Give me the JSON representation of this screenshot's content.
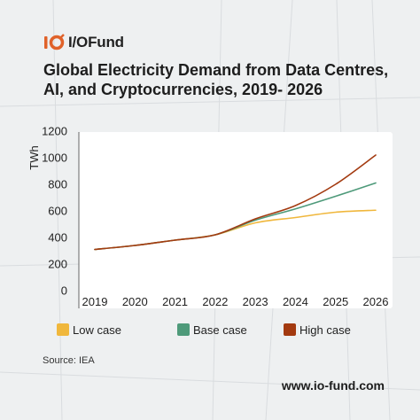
{
  "brand": {
    "name": "I/OFund",
    "logo_icon": "io-logo-icon",
    "logo_color": "#e0622a"
  },
  "title_line1": "Global Electricity Demand from Data Centres,",
  "title_line2": "AI, and Cryptocurrencies, 2019- 2026",
  "source": "Source: IEA",
  "website": "www.io-fund.com",
  "chart_data": {
    "type": "line",
    "title": "Global Electricity Demand from Data Centres, AI, and Cryptocurrencies, 2019- 2026",
    "xlabel": "",
    "ylabel": "TWh",
    "x": [
      "2019",
      "2020",
      "2021",
      "2022",
      "2023",
      "2024",
      "2025",
      "2026"
    ],
    "xlim": [
      2019,
      2026
    ],
    "ylim": [
      0,
      1200
    ],
    "yticks": [
      "0",
      "200",
      "400",
      "600",
      "800",
      "1000",
      "1200"
    ],
    "grid": false,
    "legend_position": "bottom",
    "series": [
      {
        "name": "Low case",
        "color": "#f0b73c",
        "points": [
          [
            2019,
            310
          ],
          [
            2020,
            340
          ],
          [
            2021,
            380
          ],
          [
            2022,
            420
          ],
          [
            2023,
            510
          ],
          [
            2024,
            550
          ],
          [
            2025,
            590
          ],
          [
            2026,
            605
          ]
        ]
      },
      {
        "name": "Base case",
        "color": "#4e9a7a",
        "points": [
          [
            2019,
            310
          ],
          [
            2020,
            340
          ],
          [
            2021,
            380
          ],
          [
            2022,
            420
          ],
          [
            2023,
            530
          ],
          [
            2024,
            615
          ],
          [
            2025,
            710
          ],
          [
            2026,
            810
          ]
        ]
      },
      {
        "name": "High case",
        "color": "#a33a10",
        "points": [
          [
            2019,
            310
          ],
          [
            2020,
            340
          ],
          [
            2021,
            380
          ],
          [
            2022,
            420
          ],
          [
            2023,
            540
          ],
          [
            2024,
            640
          ],
          [
            2025,
            800
          ],
          [
            2026,
            1020
          ]
        ]
      }
    ]
  }
}
